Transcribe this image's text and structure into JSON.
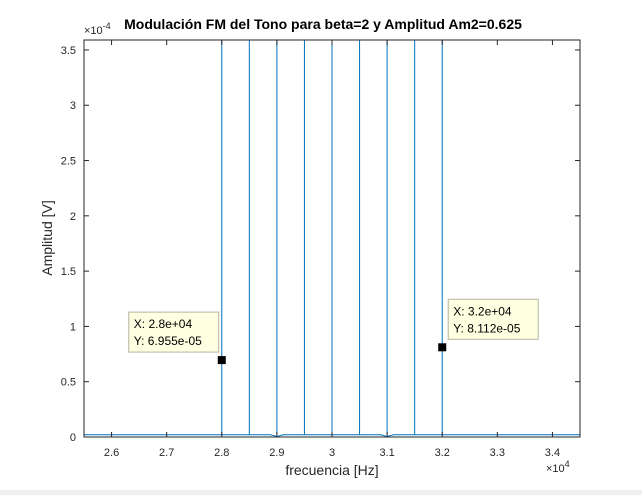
{
  "chart_data": {
    "type": "line",
    "title": "Modulación FM del Tono para beta=2 y Amplitud Am2=0.625",
    "xlabel": "frecuencia [Hz]",
    "ylabel": "Amplitud [V]",
    "x_exponent_label": {
      "base": "×10",
      "exp": "4"
    },
    "y_exponent_label": {
      "base": "×10",
      "exp": "-4"
    },
    "xlim": [
      25500,
      34500
    ],
    "ylim": [
      0,
      0.000359
    ],
    "xticks": [
      26000,
      27000,
      28000,
      29000,
      30000,
      31000,
      32000,
      33000,
      34000
    ],
    "xtick_labels": [
      "2.6",
      "2.7",
      "2.8",
      "2.9",
      "3",
      "3.1",
      "3.2",
      "3.3",
      "3.4"
    ],
    "yticks": [
      0,
      5e-05,
      0.0001,
      0.00015,
      0.0002,
      0.00025,
      0.0003,
      0.00035
    ],
    "ytick_labels": [
      "0",
      "0.5",
      "1",
      "1.5",
      "2",
      "2.5",
      "3",
      "3.5"
    ],
    "grid": false,
    "line_color": "#0072bd",
    "carrier_hz": 30000,
    "peaks_hz": [
      28000,
      28500,
      29000,
      29500,
      30000,
      30500,
      31000,
      31500,
      32000
    ],
    "datatips": [
      {
        "x": 28000,
        "y": 6.955e-05,
        "label_x": "X: 2.8e+04",
        "label_y": "Y: 6.955e-05"
      },
      {
        "x": 32000,
        "y": 8.112e-05,
        "label_x": "X: 3.2e+04",
        "label_y": "Y: 8.112e-05"
      }
    ]
  }
}
